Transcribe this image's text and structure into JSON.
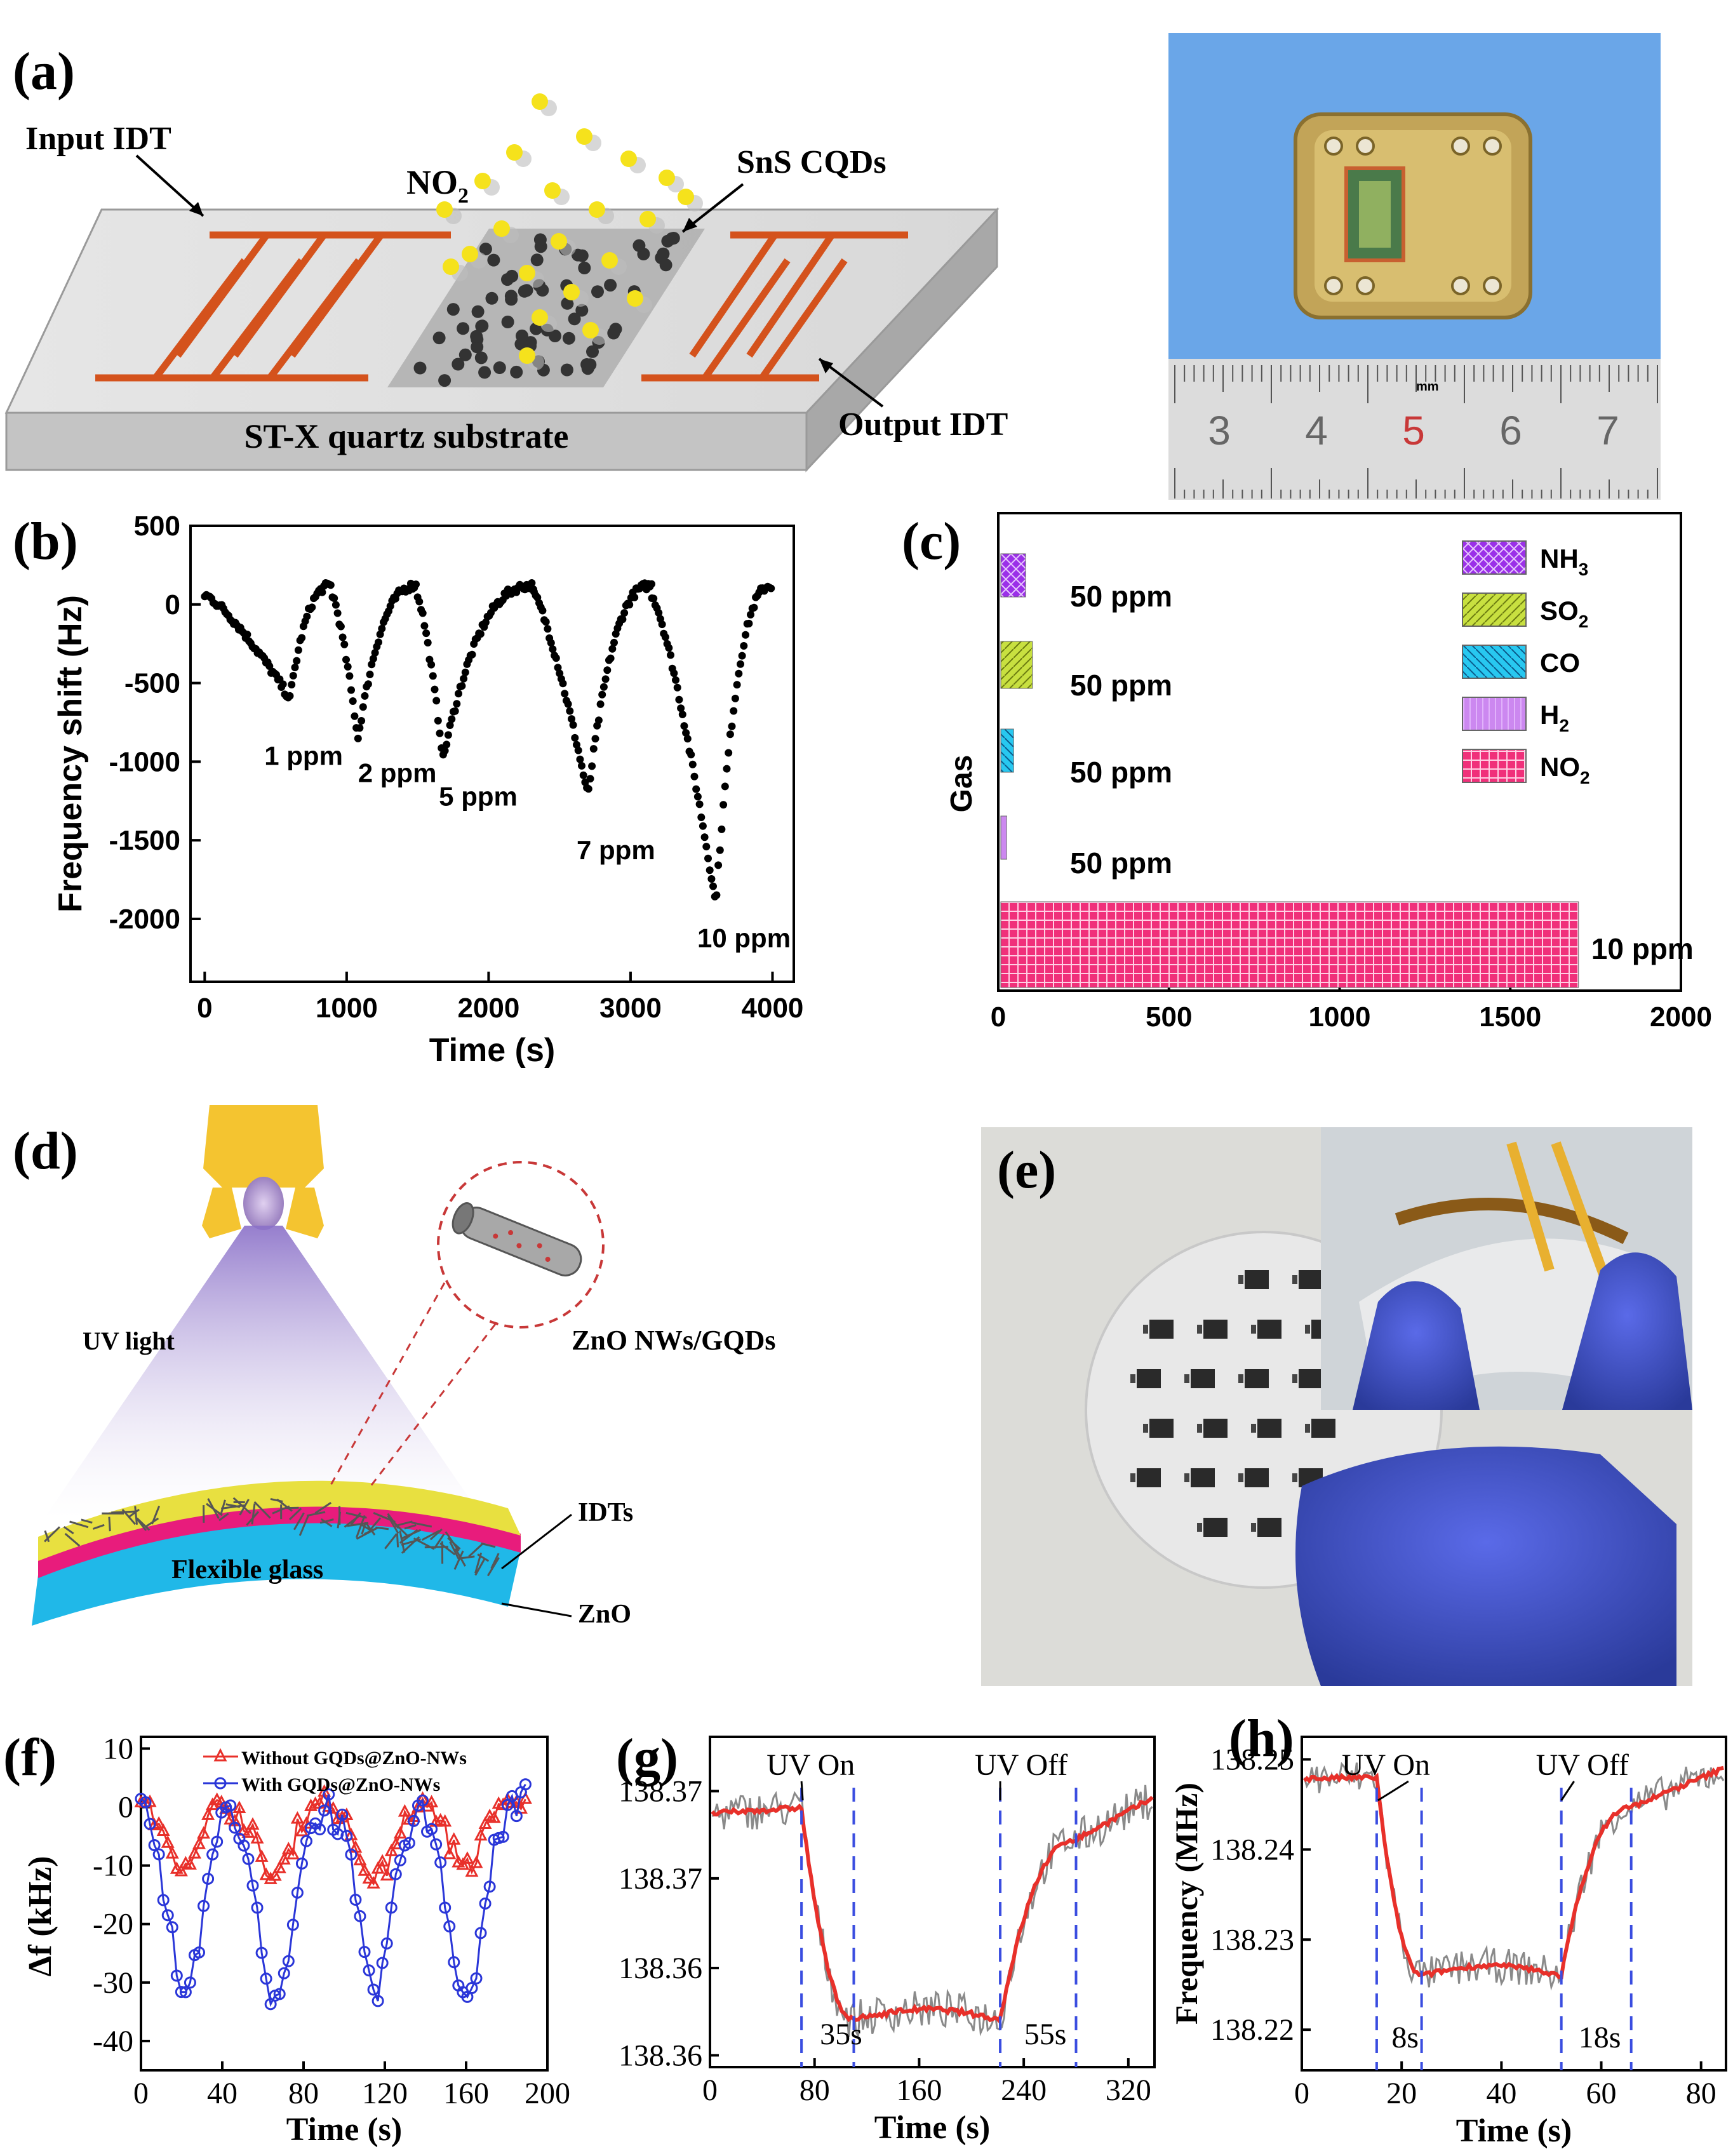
{
  "panels": {
    "a": "(a)",
    "b": "(b)",
    "c": "(c)",
    "d": "(d)",
    "e": "(e)",
    "f": "(f)",
    "g": "(g)",
    "h": "(h)"
  },
  "schematic_a": {
    "input_idt": "Input IDT",
    "output_idt": "Output IDT",
    "no2": "NO",
    "no2_sub": "2",
    "sns": "SnS CQDs",
    "substrate": "ST-X quartz substrate"
  },
  "photo_a": {
    "ruler_numbers": [
      "3",
      "4",
      "5",
      "6",
      "7"
    ],
    "ruler_unit": "mm"
  },
  "schematic_d": {
    "uv_light": "UV light",
    "zno_nws": "ZnO NWs/GQDs",
    "idts": "IDTs",
    "flexible_glass": "Flexible glass",
    "zno": "ZnO"
  },
  "colors": {
    "electrode": "#d4521c",
    "photo_bg": "#6aa6e8",
    "series_red": "#e8302a",
    "series_blue": "#2a36d8",
    "raw_grey": "#8a8a8a",
    "dash_blue": "#3a4de0",
    "nh3": "#9b30e8",
    "so2": "#c8e040",
    "co": "#28c8f0",
    "h2": "#cc88f0",
    "no2_bar": "#f0307a"
  },
  "chart_data": [
    {
      "id": "b",
      "type": "line",
      "xlabel": "Time (s)",
      "ylabel": "Frequency shift (Hz)",
      "xlim": [
        -100,
        4150
      ],
      "ylim": [
        -2400,
        500
      ],
      "xticks": [
        "0",
        "1000",
        "2000",
        "3000",
        "4000"
      ],
      "yticks": [
        "500",
        "0",
        "-500",
        "-1000",
        "-1500",
        "-2000"
      ],
      "annotations": [
        {
          "text": "1 ppm",
          "x": 420,
          "y": -1020
        },
        {
          "text": "2 ppm",
          "x": 1080,
          "y": -1130
        },
        {
          "text": "5 ppm",
          "x": 1650,
          "y": -1280
        },
        {
          "text": "7 ppm",
          "x": 2620,
          "y": -1620
        },
        {
          "text": "10 ppm",
          "x": 3470,
          "y": -2180
        }
      ],
      "cycles": [
        {
          "start": 0,
          "peak_t": 600,
          "min": -600,
          "end": 900
        },
        {
          "start": 900,
          "peak_t": 1080,
          "min": -850,
          "end": 1500
        },
        {
          "start": 1500,
          "peak_t": 1680,
          "min": -980,
          "end": 2320
        },
        {
          "start": 2320,
          "peak_t": 2700,
          "min": -1220,
          "end": 3150
        },
        {
          "start": 3150,
          "peak_t": 3600,
          "min": -1900,
          "end": 4000
        }
      ]
    },
    {
      "id": "c",
      "type": "bar",
      "ylabel": "Gas",
      "xlim": [
        0,
        2000
      ],
      "xticks": [
        "0",
        "500",
        "1000",
        "1500",
        "2000"
      ],
      "categories": [
        "NH3",
        "SO2",
        "CO",
        "H2",
        "NO2"
      ],
      "values": [
        80,
        100,
        45,
        25,
        1700
      ],
      "bar_labels": [
        "50 ppm",
        "50 ppm",
        "50 ppm",
        "50 ppm",
        "10 ppm"
      ],
      "legend": [
        {
          "name": "NH",
          "sub": "3"
        },
        {
          "name": "SO",
          "sub": "2"
        },
        {
          "name": "CO",
          "sub": ""
        },
        {
          "name": "H",
          "sub": "2"
        },
        {
          "name": "NO",
          "sub": "2"
        }
      ],
      "legend_position": "top-right"
    },
    {
      "id": "f",
      "type": "line",
      "xlabel": "Time (s)",
      "ylabel": "Δf (kHz)",
      "xlim": [
        0,
        200
      ],
      "ylim": [
        -45,
        12
      ],
      "xticks": [
        "0",
        "40",
        "80",
        "120",
        "160",
        "200"
      ],
      "yticks": [
        "10",
        "0",
        "-10",
        "-20",
        "-30",
        "-40"
      ],
      "series": [
        {
          "name": "Without GQDs@ZnO-NWs",
          "dips": [
            [
              20,
              -10
            ],
            [
              65,
              -12
            ],
            [
              115,
              -13
            ],
            [
              160,
              -10
            ]
          ]
        },
        {
          "name": "With GQDs@ZnO-NWs",
          "dips": [
            [
              22,
              -31
            ],
            [
              66,
              -35
            ],
            [
              115,
              -31
            ],
            [
              160,
              -33
            ]
          ]
        }
      ],
      "legend_position": "top"
    },
    {
      "id": "g",
      "type": "line",
      "xlabel": "Time (s)",
      "xlim": [
        0,
        340
      ],
      "ylim": [
        138.3575,
        138.3715
      ],
      "xticks": [
        "0",
        "80",
        "160",
        "240",
        "320"
      ],
      "yticks": [
        "138.37",
        "138.37",
        "138.36",
        "138.36"
      ],
      "annotations": [
        {
          "text": "UV On",
          "x": 70
        },
        {
          "text": "UV Off",
          "x": 222
        },
        {
          "text": "35s",
          "x": 88
        },
        {
          "text": "55s",
          "x": 250
        }
      ],
      "dashed_x": [
        70,
        110,
        222,
        280
      ],
      "levels": {
        "high": 138.3685,
        "low": 138.3595
      }
    },
    {
      "id": "h",
      "type": "line",
      "xlabel": "Time (s)",
      "ylabel": "Frequency (MHz)",
      "xlim": [
        0,
        85
      ],
      "ylim": [
        138.2155,
        138.2525
      ],
      "xticks": [
        "0",
        "20",
        "40",
        "60",
        "80"
      ],
      "yticks": [
        "138.25",
        "138.24",
        "138.23",
        "138.22"
      ],
      "annotations": [
        {
          "text": "UV On",
          "x": 15
        },
        {
          "text": "UV Off",
          "x": 52
        },
        {
          "text": "8s",
          "x": 19
        },
        {
          "text": "18s",
          "x": 58
        }
      ],
      "dashed_x": [
        15,
        24,
        52,
        66
      ],
      "levels": {
        "high": 138.248,
        "low": 138.226
      }
    }
  ]
}
